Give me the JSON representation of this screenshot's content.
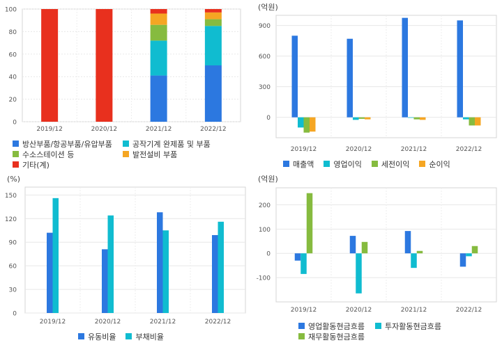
{
  "colors": {
    "blue": "#2c78e0",
    "cyan": "#10bcd0",
    "green": "#86bb3f",
    "orange": "#f5a623",
    "red": "#e8301e"
  },
  "chart_data": [
    {
      "type": "bar",
      "stacked": true,
      "categories": [
        "2019/12",
        "2020/12",
        "2021/12",
        "2022/12"
      ],
      "ylim": [
        0,
        100
      ],
      "yticks": [
        "0",
        "20",
        "40",
        "60",
        "80",
        "100"
      ],
      "grid": true,
      "series": [
        {
          "name": "방산부품/항공부품/유압부품",
          "color": "#2c78e0",
          "values": [
            0,
            0,
            41,
            50
          ]
        },
        {
          "name": "공작기계 완제품 및 부품",
          "color": "#10bcd0",
          "values": [
            0,
            0,
            31,
            35
          ]
        },
        {
          "name": "수소스테이션 등",
          "color": "#86bb3f",
          "values": [
            0,
            0,
            14,
            6
          ]
        },
        {
          "name": "발전설비 부품",
          "color": "#f5a623",
          "values": [
            0,
            0,
            10,
            6
          ]
        },
        {
          "name": "기타(계)",
          "color": "#e8301e",
          "values": [
            100,
            100,
            4,
            3
          ]
        }
      ]
    },
    {
      "type": "bar",
      "unit_label": "(억원)",
      "categories": [
        "2019/12",
        "2020/12",
        "2021/12",
        "2022/12"
      ],
      "ylim": [
        -200,
        1000
      ],
      "yticks": [
        "0",
        "300",
        "600",
        "900"
      ],
      "tick_values": [
        0,
        300,
        600,
        900
      ],
      "grid": true,
      "series": [
        {
          "name": "매출액",
          "color": "#2c78e0",
          "values": [
            800,
            770,
            975,
            950
          ]
        },
        {
          "name": "영업이익",
          "color": "#10bcd0",
          "values": [
            -100,
            -25,
            -5,
            -20
          ]
        },
        {
          "name": "세전이익",
          "color": "#86bb3f",
          "values": [
            -150,
            -15,
            -20,
            -80
          ]
        },
        {
          "name": "순이익",
          "color": "#f5a623",
          "values": [
            -140,
            -20,
            -25,
            -80
          ]
        }
      ]
    },
    {
      "type": "bar",
      "unit_label": "(%)",
      "categories": [
        "2019/12",
        "2020/12",
        "2021/12",
        "2022/12"
      ],
      "ylim": [
        0,
        160
      ],
      "yticks": [
        "0",
        "30",
        "60",
        "90",
        "120",
        "150"
      ],
      "tick_values": [
        0,
        30,
        60,
        90,
        120,
        150
      ],
      "grid": true,
      "series": [
        {
          "name": "유동비율",
          "color": "#2c78e0",
          "values": [
            102,
            81,
            128,
            99
          ]
        },
        {
          "name": "부채비율",
          "color": "#10bcd0",
          "values": [
            146,
            124,
            105,
            116
          ]
        }
      ]
    },
    {
      "type": "bar",
      "unit_label": "(억원)",
      "categories": [
        "2019/12",
        "2020/12",
        "2021/12",
        "2022/12"
      ],
      "ylim": [
        -200,
        270
      ],
      "yticks": [
        "-100",
        "0",
        "100",
        "200"
      ],
      "tick_values": [
        -100,
        0,
        100,
        200
      ],
      "grid": true,
      "series": [
        {
          "name": "영업활동현금흐름",
          "color": "#2c78e0",
          "values": [
            -30,
            72,
            92,
            -55
          ]
        },
        {
          "name": "투자활동현금흐름",
          "color": "#10bcd0",
          "values": [
            -85,
            -165,
            -60,
            -12
          ]
        },
        {
          "name": "재무활동현금흐름",
          "color": "#86bb3f",
          "values": [
            248,
            47,
            10,
            30
          ]
        }
      ]
    }
  ]
}
